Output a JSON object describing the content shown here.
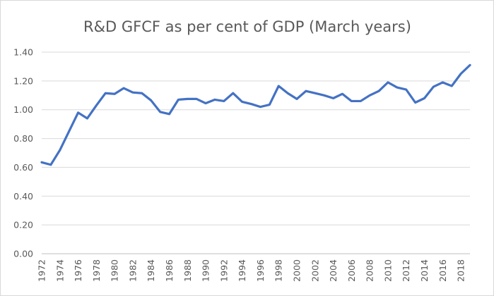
{
  "chart_data": {
    "type": "line",
    "title": "R&D GFCF as per cent of GDP (March years)",
    "xlabel": "",
    "ylabel": "",
    "ylim": [
      0,
      1.4
    ],
    "y_ticks": [
      "0.00",
      "0.20",
      "0.40",
      "0.60",
      "0.80",
      "1.00",
      "1.20",
      "1.40"
    ],
    "grid": true,
    "legend": "none",
    "x": [
      1972,
      1973,
      1974,
      1975,
      1976,
      1977,
      1978,
      1979,
      1980,
      1981,
      1982,
      1983,
      1984,
      1985,
      1986,
      1987,
      1988,
      1989,
      1990,
      1991,
      1992,
      1993,
      1994,
      1995,
      1996,
      1997,
      1998,
      1999,
      2000,
      2001,
      2002,
      2003,
      2004,
      2005,
      2006,
      2007,
      2008,
      2009,
      2010,
      2011,
      2012,
      2013,
      2014,
      2015,
      2016,
      2017,
      2018,
      2019
    ],
    "x_tick_labels": [
      "1972",
      "1974",
      "1976",
      "1978",
      "1980",
      "1982",
      "1984",
      "1986",
      "1988",
      "1990",
      "1992",
      "1994",
      "1996",
      "1998",
      "2000",
      "2002",
      "2004",
      "2006",
      "2008",
      "2010",
      "2012",
      "2014",
      "2016",
      "2018"
    ],
    "series": [
      {
        "name": "R&D GFCF % of GDP",
        "color": "#4472c4",
        "values": [
          0.635,
          0.618,
          0.72,
          0.85,
          0.98,
          0.94,
          1.03,
          1.115,
          1.11,
          1.15,
          1.12,
          1.115,
          1.065,
          0.985,
          0.97,
          1.07,
          1.075,
          1.075,
          1.045,
          1.07,
          1.06,
          1.115,
          1.055,
          1.04,
          1.02,
          1.035,
          1.165,
          1.115,
          1.075,
          1.13,
          1.115,
          1.1,
          1.08,
          1.11,
          1.06,
          1.06,
          1.1,
          1.13,
          1.19,
          1.155,
          1.14,
          1.05,
          1.08,
          1.16,
          1.19,
          1.165,
          1.25,
          1.31
        ]
      }
    ]
  }
}
